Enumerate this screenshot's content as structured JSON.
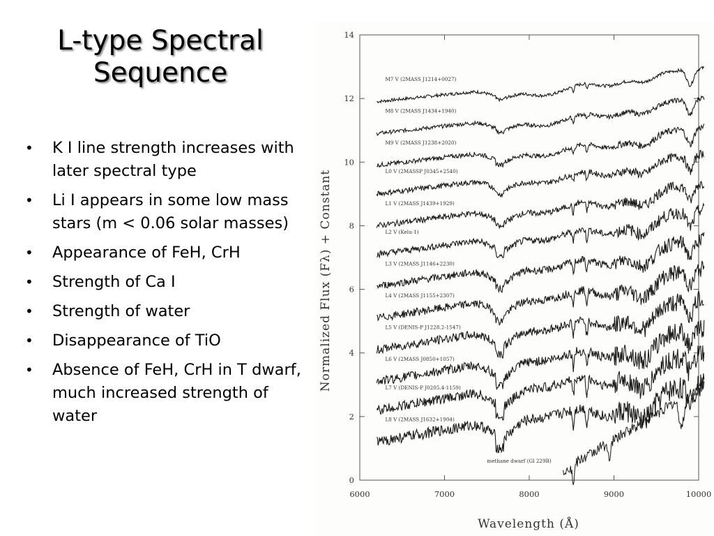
{
  "slide": {
    "title_lines": [
      "L-type Spectral",
      "Sequence"
    ],
    "bullets": [
      "K I line strength increases with later spectral type",
      "Li I appears in some low mass stars (m < 0.06 solar masses)",
      "Appearance of  FeH, CrH",
      "Strength of Ca I",
      "Strength of water",
      "Disappearance of TiO",
      "Absence of FeH, CrH in T dwarf, much increased strength of water"
    ]
  },
  "chart_data": {
    "type": "line",
    "xlabel": "Wavelength (Å)",
    "ylabel": "Normalized Flux (Fλ) + Constant",
    "xlim": [
      6000,
      10000
    ],
    "ylim": [
      0,
      14
    ],
    "x_ticks": [
      6000,
      7000,
      8000,
      9000,
      10000
    ],
    "y_ticks": [
      0,
      2,
      4,
      6,
      8,
      10,
      12,
      14
    ],
    "series": [
      {
        "name": "M7 V (2MASS J1214+0027)",
        "offset": 11.9,
        "start_x": 6200
      },
      {
        "name": "M8 V (2MASS J1434+1940)",
        "offset": 10.9,
        "start_x": 6200
      },
      {
        "name": "M9 V (2MASS J1238+2020)",
        "offset": 9.9,
        "start_x": 6200
      },
      {
        "name": "L0 V (2MASSP J0345+2540)",
        "offset": 9.0,
        "start_x": 6200
      },
      {
        "name": "L1 V (2MASS J1439+1929)",
        "offset": 8.0,
        "start_x": 6200
      },
      {
        "name": "L2 V (Kelu-1)",
        "offset": 7.1,
        "start_x": 6200
      },
      {
        "name": "L3 V (2MASS J1146+2230)",
        "offset": 6.1,
        "start_x": 6200
      },
      {
        "name": "L4 V (2MASS J1155+2307)",
        "offset": 5.1,
        "start_x": 6200
      },
      {
        "name": "L5 V (DENIS-P J1228.2-1547)",
        "offset": 4.1,
        "start_x": 6200
      },
      {
        "name": "L6 V (2MASS J0850+1057)",
        "offset": 3.1,
        "start_x": 6200
      },
      {
        "name": "L7 V (DENIS-P J0205.4-1159)",
        "offset": 2.2,
        "start_x": 6200
      },
      {
        "name": "L8 V (2MASS J1632+1904)",
        "offset": 1.2,
        "start_x": 6200
      },
      {
        "name": "methane dwarf (Gl 229B)",
        "offset": 0.3,
        "start_x": 8400
      }
    ]
  }
}
